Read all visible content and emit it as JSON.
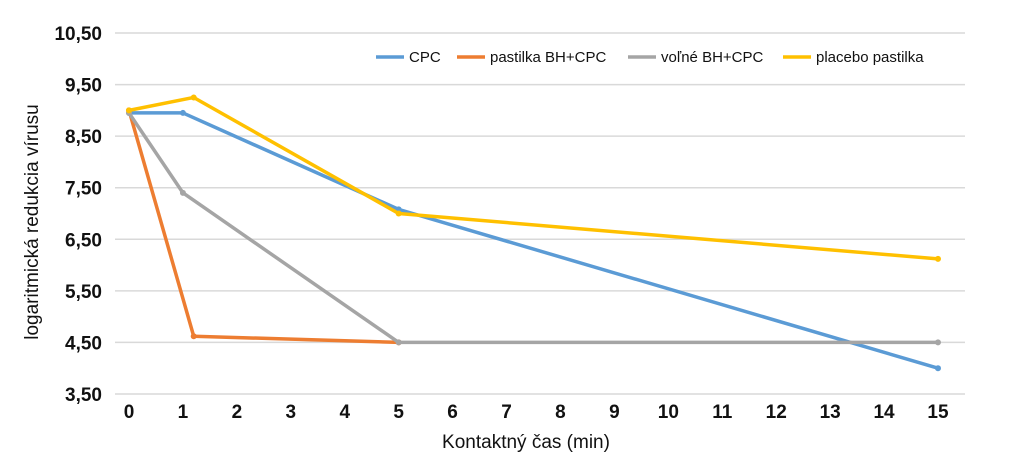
{
  "chart_data": {
    "type": "line",
    "xlabel": "Kontaktný čas (min)",
    "ylabel": "logaritmická redukcia vírusu",
    "xlim": [
      0,
      15
    ],
    "ylim": [
      3.5,
      10.5
    ],
    "x_ticks": [
      "0",
      "1",
      "2",
      "3",
      "4",
      "5",
      "6",
      "7",
      "8",
      "9",
      "10",
      "11",
      "12",
      "13",
      "14",
      "15"
    ],
    "y_ticks": [
      {
        "value": 3.5,
        "label": "3,50"
      },
      {
        "value": 4.5,
        "label": "4,50"
      },
      {
        "value": 5.5,
        "label": "5,50"
      },
      {
        "value": 6.5,
        "label": "6,50"
      },
      {
        "value": 7.5,
        "label": "7,50"
      },
      {
        "value": 8.5,
        "label": "8,50"
      },
      {
        "value": 9.5,
        "label": "9,50"
      },
      {
        "value": 10.5,
        "label": "10,50"
      }
    ],
    "grid": true,
    "legend_position": "top-right",
    "series": [
      {
        "name": "CPC",
        "color": "#5b9bd5",
        "points": [
          [
            0,
            8.95
          ],
          [
            1,
            8.95
          ],
          [
            5,
            7.08
          ],
          [
            15,
            4.0
          ]
        ]
      },
      {
        "name": "pastilka BH+CPC",
        "color": "#ed7d31",
        "points": [
          [
            0,
            9.0
          ],
          [
            1.2,
            4.62
          ],
          [
            5,
            4.5
          ]
        ]
      },
      {
        "name": "voľné BH+CPC",
        "color": "#a5a5a5",
        "points": [
          [
            0,
            8.95
          ],
          [
            1,
            7.4
          ],
          [
            5,
            4.5
          ],
          [
            15,
            4.5
          ]
        ]
      },
      {
        "name": "placebo pastilka",
        "color": "#ffc000",
        "points": [
          [
            0,
            9.0
          ],
          [
            1.2,
            9.25
          ],
          [
            5,
            7.0
          ],
          [
            15,
            6.12
          ]
        ]
      }
    ]
  }
}
